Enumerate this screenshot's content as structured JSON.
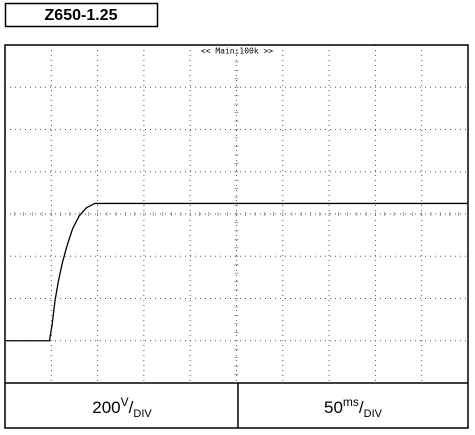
{
  "chart_data": {
    "type": "line",
    "title": "Z650-1.25",
    "header": "<< Main:100k >>",
    "x": [
      0,
      48,
      51,
      54,
      58,
      62,
      67,
      73,
      80,
      88,
      97,
      500
    ],
    "values": [
      0,
      0,
      80,
      190,
      290,
      370,
      450,
      530,
      590,
      630,
      650,
      650
    ],
    "color": "#000000",
    "xlim": [
      0,
      500
    ],
    "xticks": [
      0,
      50,
      100,
      150,
      200,
      250,
      300,
      350,
      400,
      450,
      500
    ],
    "ylim": [
      -200,
      1400
    ],
    "yticks": [
      -200,
      0,
      200,
      400,
      600,
      800,
      1000,
      1200,
      1400
    ],
    "grid": true,
    "y_scale": {
      "value": 200,
      "unit": "V",
      "separator": "/",
      "per": "DIV"
    },
    "x_scale": {
      "value": 50,
      "unit": "ms",
      "separator": "/",
      "per": "DIV"
    }
  }
}
